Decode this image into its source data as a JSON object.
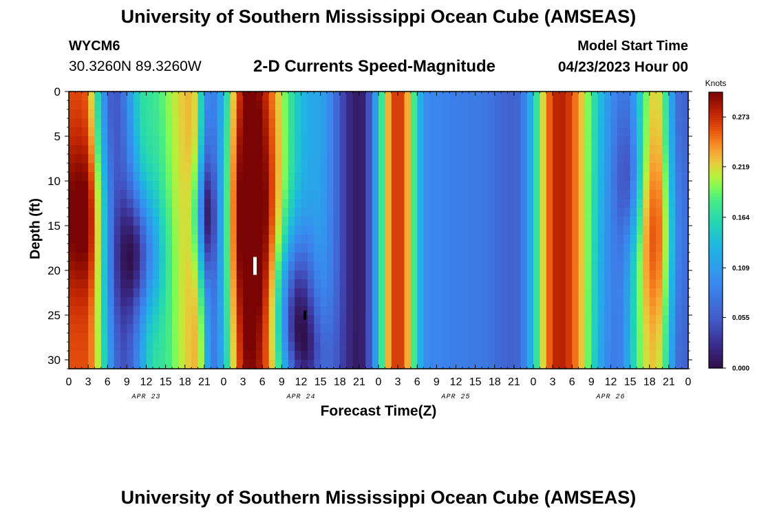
{
  "header": {
    "title": "University of Southern Mississippi Ocean Cube (AMSEAS)",
    "station_id": "WYCM6",
    "coords": "30.3260N  89.3260W",
    "chart_title": "2-D Currents Speed-Magnitude",
    "start_label": "Model Start Time",
    "start_value": "04/23/2023 Hour 00"
  },
  "footer": {
    "title": "University of Southern Mississippi Ocean Cube (AMSEAS)"
  },
  "chart_data": {
    "type": "heatmap",
    "title": "2-D Currents Speed-Magnitude",
    "xlabel": "Forecast Time(Z)",
    "ylabel": "Depth (ft)",
    "x_range_hours": [
      0,
      96
    ],
    "y_range_ft": [
      0,
      31
    ],
    "x_tick_labels": [
      "0",
      "3",
      "6",
      "9",
      "12",
      "15",
      "18",
      "21",
      "0",
      "3",
      "6",
      "9",
      "12",
      "15",
      "18",
      "21",
      "0",
      "3",
      "6",
      "9",
      "12",
      "15",
      "18",
      "21",
      "0",
      "3",
      "6",
      "9",
      "12",
      "15",
      "18",
      "21",
      "0"
    ],
    "y_ticks": [
      0,
      5,
      10,
      15,
      20,
      25,
      30
    ],
    "day_labels": [
      {
        "text": "APR 23",
        "hour": 12
      },
      {
        "text": "APR 24",
        "hour": 36
      },
      {
        "text": "APR 25",
        "hour": 60
      },
      {
        "text": "APR 26",
        "hour": 84
      }
    ],
    "colorbar": {
      "label": "Knots",
      "ticks": [
        "0.000",
        "0.055",
        "0.109",
        "0.164",
        "0.219",
        "0.273"
      ],
      "min": 0.0,
      "max": 0.3
    },
    "speed_peaks_surface": [
      {
        "hour": 2,
        "speed": 0.26
      },
      {
        "hour": 7,
        "speed": 0.05
      },
      {
        "hour": 12,
        "speed": 0.17
      },
      {
        "hour": 19,
        "speed": 0.23
      },
      {
        "hour": 22,
        "speed": 0.08
      },
      {
        "hour": 28,
        "speed": 0.29
      },
      {
        "hour": 38,
        "speed": 0.12
      },
      {
        "hour": 45,
        "speed": 0.01
      },
      {
        "hour": 51,
        "speed": 0.27
      },
      {
        "hour": 56,
        "speed": 0.09
      },
      {
        "hour": 63,
        "speed": 0.08
      },
      {
        "hour": 69,
        "speed": 0.06
      },
      {
        "hour": 76,
        "speed": 0.28
      },
      {
        "hour": 86,
        "speed": 0.08
      },
      {
        "hour": 91,
        "speed": 0.22
      },
      {
        "hour": 95,
        "speed": 0.06
      }
    ],
    "colors": {
      "v000": "#2f0f4a",
      "v010": "#3b2d8f",
      "v020": "#4259c8",
      "v035": "#3a88f0",
      "v050": "#1fb4e4",
      "v060": "#22d4b7",
      "v070": "#48ec84",
      "v075": "#7cfb5a",
      "v080": "#b7f13a",
      "v085": "#e4d03b",
      "v090": "#f7a633",
      "v095": "#f47b1e",
      "v100": "#e24c0c",
      "v105": "#c82a04",
      "v110": "#a01502",
      "v115": "#7a0403"
    }
  }
}
